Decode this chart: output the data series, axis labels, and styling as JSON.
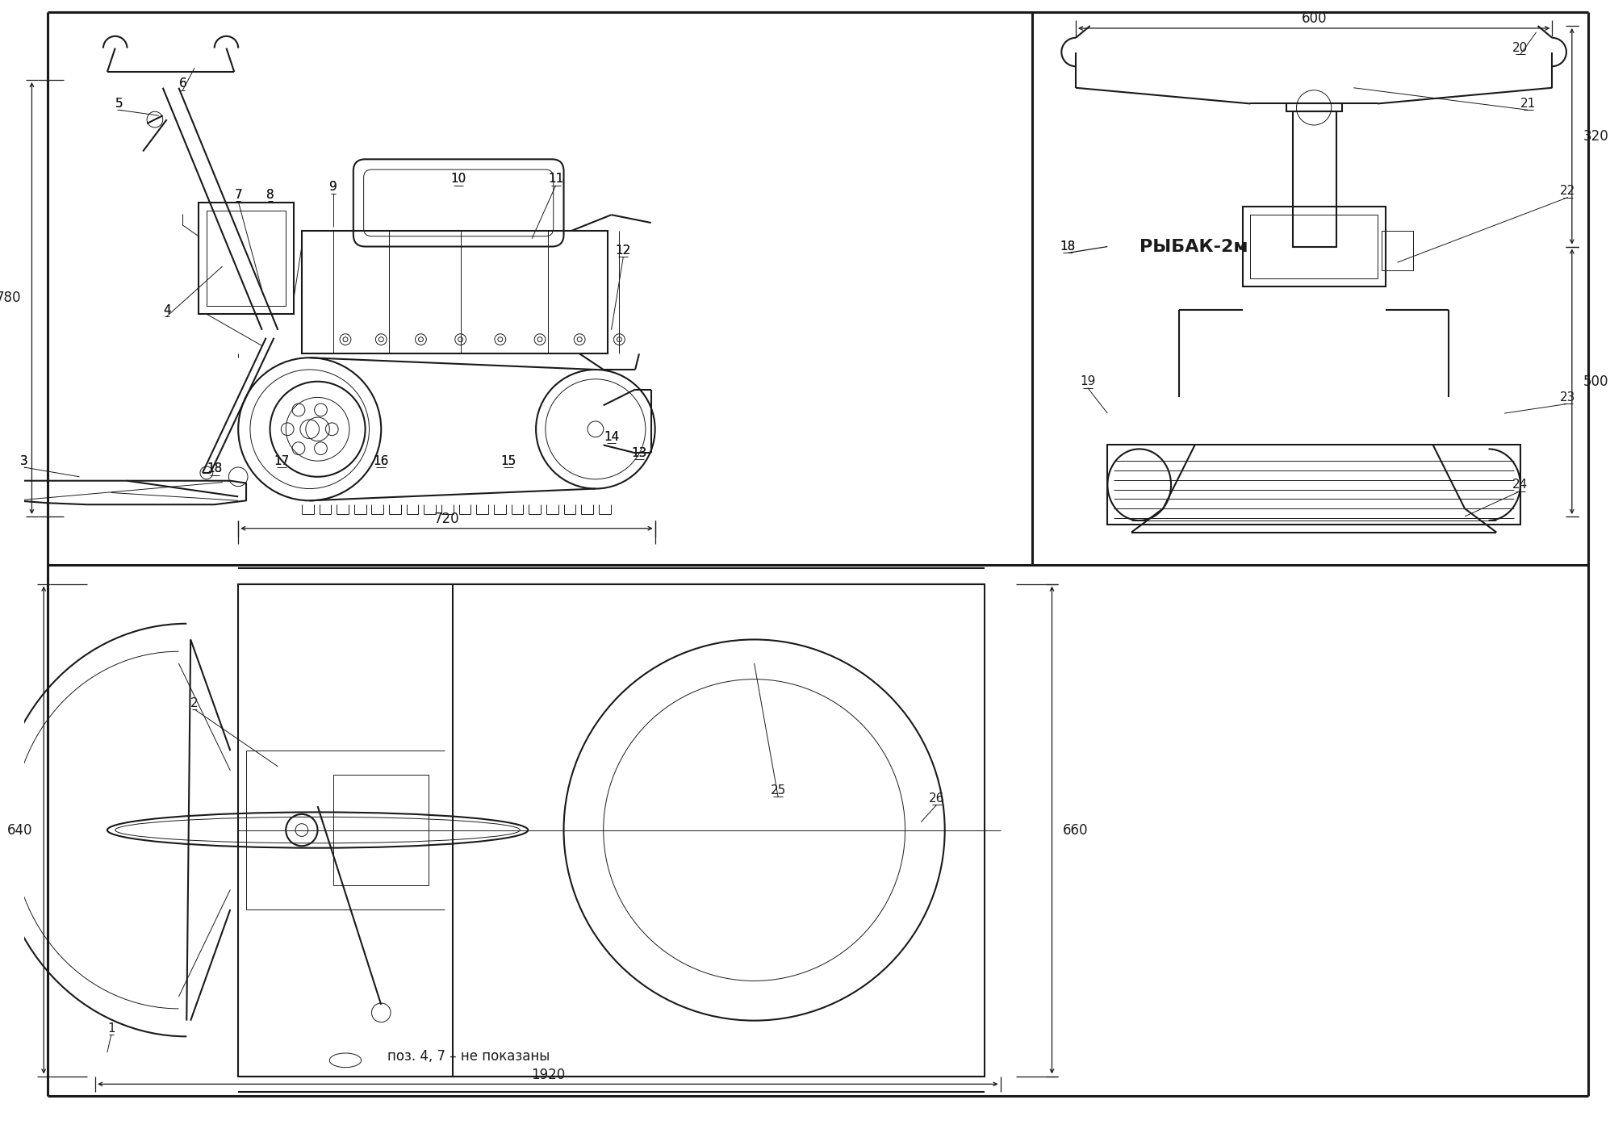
{
  "bg_color": "#ffffff",
  "line_color": "#1a1a1a",
  "title": "РЫБАК-2м",
  "note_text": "поз. 4, 7 – не показаны",
  "dim_780": "780",
  "dim_720": "720",
  "dim_600": "600",
  "dim_320": "320",
  "dim_500": "500",
  "dim_640": "640",
  "dim_660": "660",
  "dim_1920": "1920",
  "lw_main": 1.5,
  "lw_thin": 0.7,
  "lw_dim": 0.9,
  "lw_thick": 2.2,
  "fontsize_label": 11,
  "fontsize_dim": 12
}
